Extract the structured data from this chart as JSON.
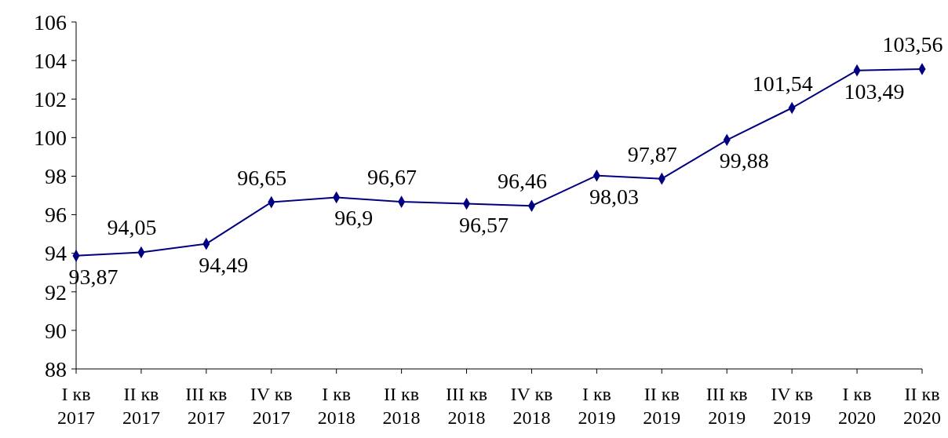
{
  "chart_data": {
    "type": "line",
    "categories": [
      "I кв 2017",
      "II кв 2017",
      "III кв 2017",
      "IV кв 2017",
      "I кв 2018",
      "II кв 2018",
      "III кв 2018",
      "IV кв 2018",
      "I кв 2019",
      "II кв 2019",
      "III кв 2019",
      "IV кв 2019",
      "I кв 2020",
      "II кв 2020"
    ],
    "series": [
      {
        "color": "#000080",
        "values": [
          93.87,
          94.05,
          94.49,
          96.65,
          96.9,
          96.67,
          96.57,
          96.46,
          98.03,
          97.87,
          99.88,
          101.54,
          103.49,
          103.56
        ],
        "value_labels": [
          "93,87",
          "94,05",
          "94,49",
          "96,65",
          "96,9",
          "96,67",
          "96,57",
          "96,46",
          "98,03",
          "97,87",
          "99,88",
          "101,54",
          "103,49",
          "103,56"
        ]
      }
    ],
    "ylim": [
      88,
      106
    ],
    "yticks": [
      88,
      90,
      92,
      94,
      96,
      98,
      100,
      102,
      104,
      106
    ],
    "grid": false,
    "marker": "diamond",
    "line_style": "solid"
  }
}
